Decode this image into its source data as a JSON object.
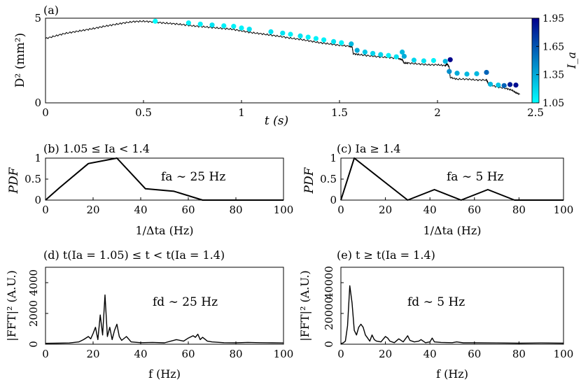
{
  "chart_data": [
    {
      "id": "a",
      "type": "scatter",
      "panel_label": "(a)",
      "title": "",
      "xlabel": "t (s)",
      "ylabel": "D² (mm²)",
      "xlim": [
        0,
        2.5
      ],
      "ylim": [
        0,
        5
      ],
      "xticks": [
        0,
        0.5,
        1,
        1.5,
        2,
        2.5
      ],
      "yticks": [
        0,
        5
      ],
      "xticklabels": [
        "0",
        "0.5",
        "1",
        "1.5",
        "2",
        "2.5"
      ],
      "yticklabels": [
        "0",
        "5"
      ],
      "series": [
        {
          "name": "D²(t)",
          "kind": "line",
          "points": [
            [
              0.0,
              3.8
            ],
            [
              0.05,
              3.95
            ],
            [
              0.1,
              4.1
            ],
            [
              0.15,
              4.2
            ],
            [
              0.2,
              4.3
            ],
            [
              0.25,
              4.4
            ],
            [
              0.3,
              4.52
            ],
            [
              0.35,
              4.62
            ],
            [
              0.4,
              4.72
            ],
            [
              0.45,
              4.8
            ],
            [
              0.5,
              4.82
            ],
            [
              0.55,
              4.78
            ],
            [
              0.6,
              4.72
            ],
            [
              0.65,
              4.68
            ],
            [
              0.7,
              4.62
            ],
            [
              0.75,
              4.55
            ],
            [
              0.8,
              4.5
            ],
            [
              0.85,
              4.45
            ],
            [
              0.9,
              4.4
            ],
            [
              0.95,
              4.35
            ],
            [
              1.0,
              4.25
            ],
            [
              1.05,
              4.15
            ],
            [
              1.1,
              4.08
            ],
            [
              1.15,
              4.0
            ],
            [
              1.2,
              3.92
            ],
            [
              1.25,
              3.82
            ],
            [
              1.3,
              3.75
            ],
            [
              1.35,
              3.65
            ],
            [
              1.4,
              3.55
            ],
            [
              1.45,
              3.48
            ],
            [
              1.5,
              3.4
            ],
            [
              1.55,
              3.35
            ],
            [
              1.565,
              3.3
            ],
            [
              1.57,
              2.9
            ],
            [
              1.6,
              2.85
            ],
            [
              1.65,
              2.78
            ],
            [
              1.7,
              2.72
            ],
            [
              1.75,
              2.68
            ],
            [
              1.8,
              2.62
            ],
            [
              1.82,
              2.55
            ],
            [
              1.83,
              2.35
            ],
            [
              1.85,
              2.35
            ],
            [
              1.9,
              2.3
            ],
            [
              1.95,
              2.25
            ],
            [
              2.0,
              2.25
            ],
            [
              2.04,
              2.2
            ],
            [
              2.05,
              2.3
            ],
            [
              2.06,
              2.1
            ],
            [
              2.065,
              1.5
            ],
            [
              2.1,
              1.4
            ],
            [
              2.15,
              1.4
            ],
            [
              2.2,
              1.35
            ],
            [
              2.25,
              1.35
            ],
            [
              2.255,
              1.25
            ],
            [
              2.26,
              1.1
            ],
            [
              2.3,
              0.95
            ],
            [
              2.35,
              0.85
            ],
            [
              2.38,
              0.75
            ],
            [
              2.4,
              0.6
            ],
            [
              2.42,
              0.5
            ]
          ]
        },
        {
          "name": "Ia events",
          "kind": "markers",
          "points": [
            [
              0.56,
              4.82,
              1.05
            ],
            [
              0.73,
              4.72,
              1.1
            ],
            [
              0.79,
              4.65,
              1.1
            ],
            [
              0.85,
              4.6,
              1.15
            ],
            [
              0.91,
              4.55,
              1.1
            ],
            [
              0.96,
              4.52,
              1.1
            ],
            [
              1.0,
              4.42,
              1.1
            ],
            [
              1.04,
              4.35,
              1.15
            ],
            [
              1.15,
              4.2,
              1.15
            ],
            [
              1.21,
              4.12,
              1.15
            ],
            [
              1.25,
              4.05,
              1.1
            ],
            [
              1.3,
              3.95,
              1.15
            ],
            [
              1.34,
              3.88,
              1.1
            ],
            [
              1.38,
              3.8,
              1.1
            ],
            [
              1.42,
              3.72,
              1.1
            ],
            [
              1.47,
              3.62,
              1.15
            ],
            [
              1.51,
              3.55,
              1.1
            ],
            [
              1.56,
              3.48,
              1.3
            ],
            [
              1.59,
              3.1,
              1.35
            ],
            [
              1.63,
              3.0,
              1.25
            ],
            [
              1.67,
              2.92,
              1.2
            ],
            [
              1.71,
              2.85,
              1.2
            ],
            [
              1.75,
              2.8,
              1.1
            ],
            [
              1.79,
              2.72,
              1.15
            ],
            [
              1.82,
              3.0,
              1.3
            ],
            [
              1.83,
              2.75,
              1.35
            ],
            [
              1.88,
              2.52,
              1.2
            ],
            [
              1.93,
              2.48,
              1.15
            ],
            [
              1.98,
              2.5,
              1.1
            ],
            [
              2.04,
              2.45,
              1.3
            ],
            [
              2.065,
              2.55,
              1.95
            ],
            [
              2.06,
              1.85,
              1.45
            ],
            [
              2.1,
              1.75,
              1.35
            ],
            [
              2.15,
              1.7,
              1.3
            ],
            [
              2.2,
              1.72,
              1.3
            ],
            [
              2.25,
              1.8,
              1.6
            ],
            [
              2.27,
              1.1,
              1.3
            ],
            [
              2.31,
              1.05,
              1.25
            ],
            [
              2.34,
              1.02,
              1.6
            ],
            [
              2.37,
              1.08,
              1.85
            ],
            [
              2.4,
              1.05,
              1.9
            ]
          ]
        }
      ],
      "colorbar": {
        "label": "I_a",
        "range": [
          1.05,
          1.95
        ],
        "ticks": [
          1.05,
          1.35,
          1.65,
          1.95
        ],
        "ticklabels": [
          "1.05",
          "1.35",
          "1.65",
          "1.95"
        ],
        "color_low": "#00FFFF",
        "color_high": "#00008B"
      }
    },
    {
      "id": "b",
      "type": "line",
      "panel_label": "(b) 1.05 ≤ Ia < 1.4",
      "xlabel": "1/Δta (Hz)",
      "ylabel": "PDF",
      "xlim": [
        0,
        100
      ],
      "ylim": [
        0,
        1
      ],
      "xticks": [
        0,
        20,
        40,
        60,
        80,
        100
      ],
      "yticks": [
        0,
        0.5,
        1
      ],
      "yticklabels": [
        "0",
        "0.5",
        "1"
      ],
      "annotation": "fa ∼ 25 Hz",
      "x": [
        0,
        6,
        18,
        30,
        42,
        54,
        66,
        78,
        90,
        100
      ],
      "y": [
        0,
        0.3,
        0.87,
        1.0,
        0.27,
        0.21,
        0.0,
        0.0,
        0.0,
        0.0
      ]
    },
    {
      "id": "c",
      "type": "line",
      "panel_label": "(c) Ia ≥ 1.4",
      "xlabel": "1/Δta (Hz)",
      "ylabel": "PDF",
      "xlim": [
        0,
        100
      ],
      "ylim": [
        0,
        1
      ],
      "xticks": [
        0,
        20,
        40,
        60,
        80,
        100
      ],
      "yticks": [
        0,
        0.5,
        1
      ],
      "yticklabels": [
        "0",
        "0.5",
        "1"
      ],
      "annotation": "fa ∼ 5 Hz",
      "x": [
        0,
        6,
        18,
        30,
        42,
        54,
        66,
        78,
        90,
        100
      ],
      "y": [
        0,
        1.0,
        0.5,
        0.0,
        0.25,
        0.0,
        0.25,
        0.0,
        0.0,
        0.0
      ]
    },
    {
      "id": "d",
      "type": "line",
      "panel_label": "(d) t(Ia = 1.05) ≤ t < t(Ia = 1.4)",
      "xlabel": "f (Hz)",
      "ylabel": "|FFT|² (A.U.)",
      "xlim": [
        0,
        100
      ],
      "ylim": [
        0,
        5000
      ],
      "xticks": [
        0,
        20,
        40,
        60,
        80,
        100
      ],
      "yticks": [
        0,
        2000,
        4000
      ],
      "yticklabels": [
        "0",
        "2000",
        "4000"
      ],
      "annotation": "fd ∼ 25 Hz",
      "x": [
        0,
        5,
        10,
        14,
        16,
        18,
        19,
        20,
        21,
        22,
        23,
        24,
        25,
        26,
        27,
        28,
        29,
        30,
        31,
        32,
        34,
        36,
        40,
        45,
        50,
        55,
        58,
        60,
        62,
        63,
        64,
        65,
        66,
        68,
        70,
        75,
        80,
        85,
        90,
        95,
        100
      ],
      "y": [
        60,
        70,
        80,
        150,
        300,
        500,
        350,
        700,
        1100,
        300,
        1900,
        600,
        3200,
        500,
        1100,
        300,
        900,
        1300,
        500,
        250,
        500,
        150,
        100,
        120,
        90,
        300,
        200,
        400,
        550,
        450,
        650,
        300,
        450,
        200,
        150,
        100,
        90,
        120,
        100,
        90,
        80
      ]
    },
    {
      "id": "e",
      "type": "line",
      "panel_label": "(e) t ≥ t(Ia = 1.4)",
      "xlabel": "f (Hz)",
      "ylabel": "|FFT|² (A.U.)",
      "xlim": [
        0,
        100
      ],
      "ylim": [
        0,
        50000
      ],
      "xticks": [
        0,
        20,
        40,
        60,
        80,
        100
      ],
      "yticks": [
        0,
        20000,
        40000
      ],
      "yticklabels": [
        "0",
        "20000",
        "40000"
      ],
      "annotation": "fd ∼ 5 Hz",
      "x": [
        0,
        1,
        2,
        3,
        4,
        5,
        6,
        7,
        8,
        9,
        10,
        11,
        12,
        13,
        14,
        15,
        16,
        18,
        20,
        21,
        22,
        24,
        26,
        28,
        30,
        31,
        33,
        35,
        36,
        38,
        40,
        41,
        42,
        45,
        50,
        52,
        55,
        60,
        70,
        80,
        90,
        100
      ],
      "y": [
        500,
        800,
        2000,
        12000,
        38000,
        27000,
        9000,
        6000,
        11000,
        13000,
        11000,
        6000,
        4000,
        2000,
        6000,
        3000,
        2000,
        1500,
        5000,
        4000,
        2000,
        1000,
        3500,
        1500,
        5500,
        2500,
        1500,
        2000,
        3000,
        1000,
        1500,
        4000,
        1500,
        1200,
        1000,
        1500,
        900,
        900,
        800,
        700,
        800,
        700
      ]
    }
  ]
}
